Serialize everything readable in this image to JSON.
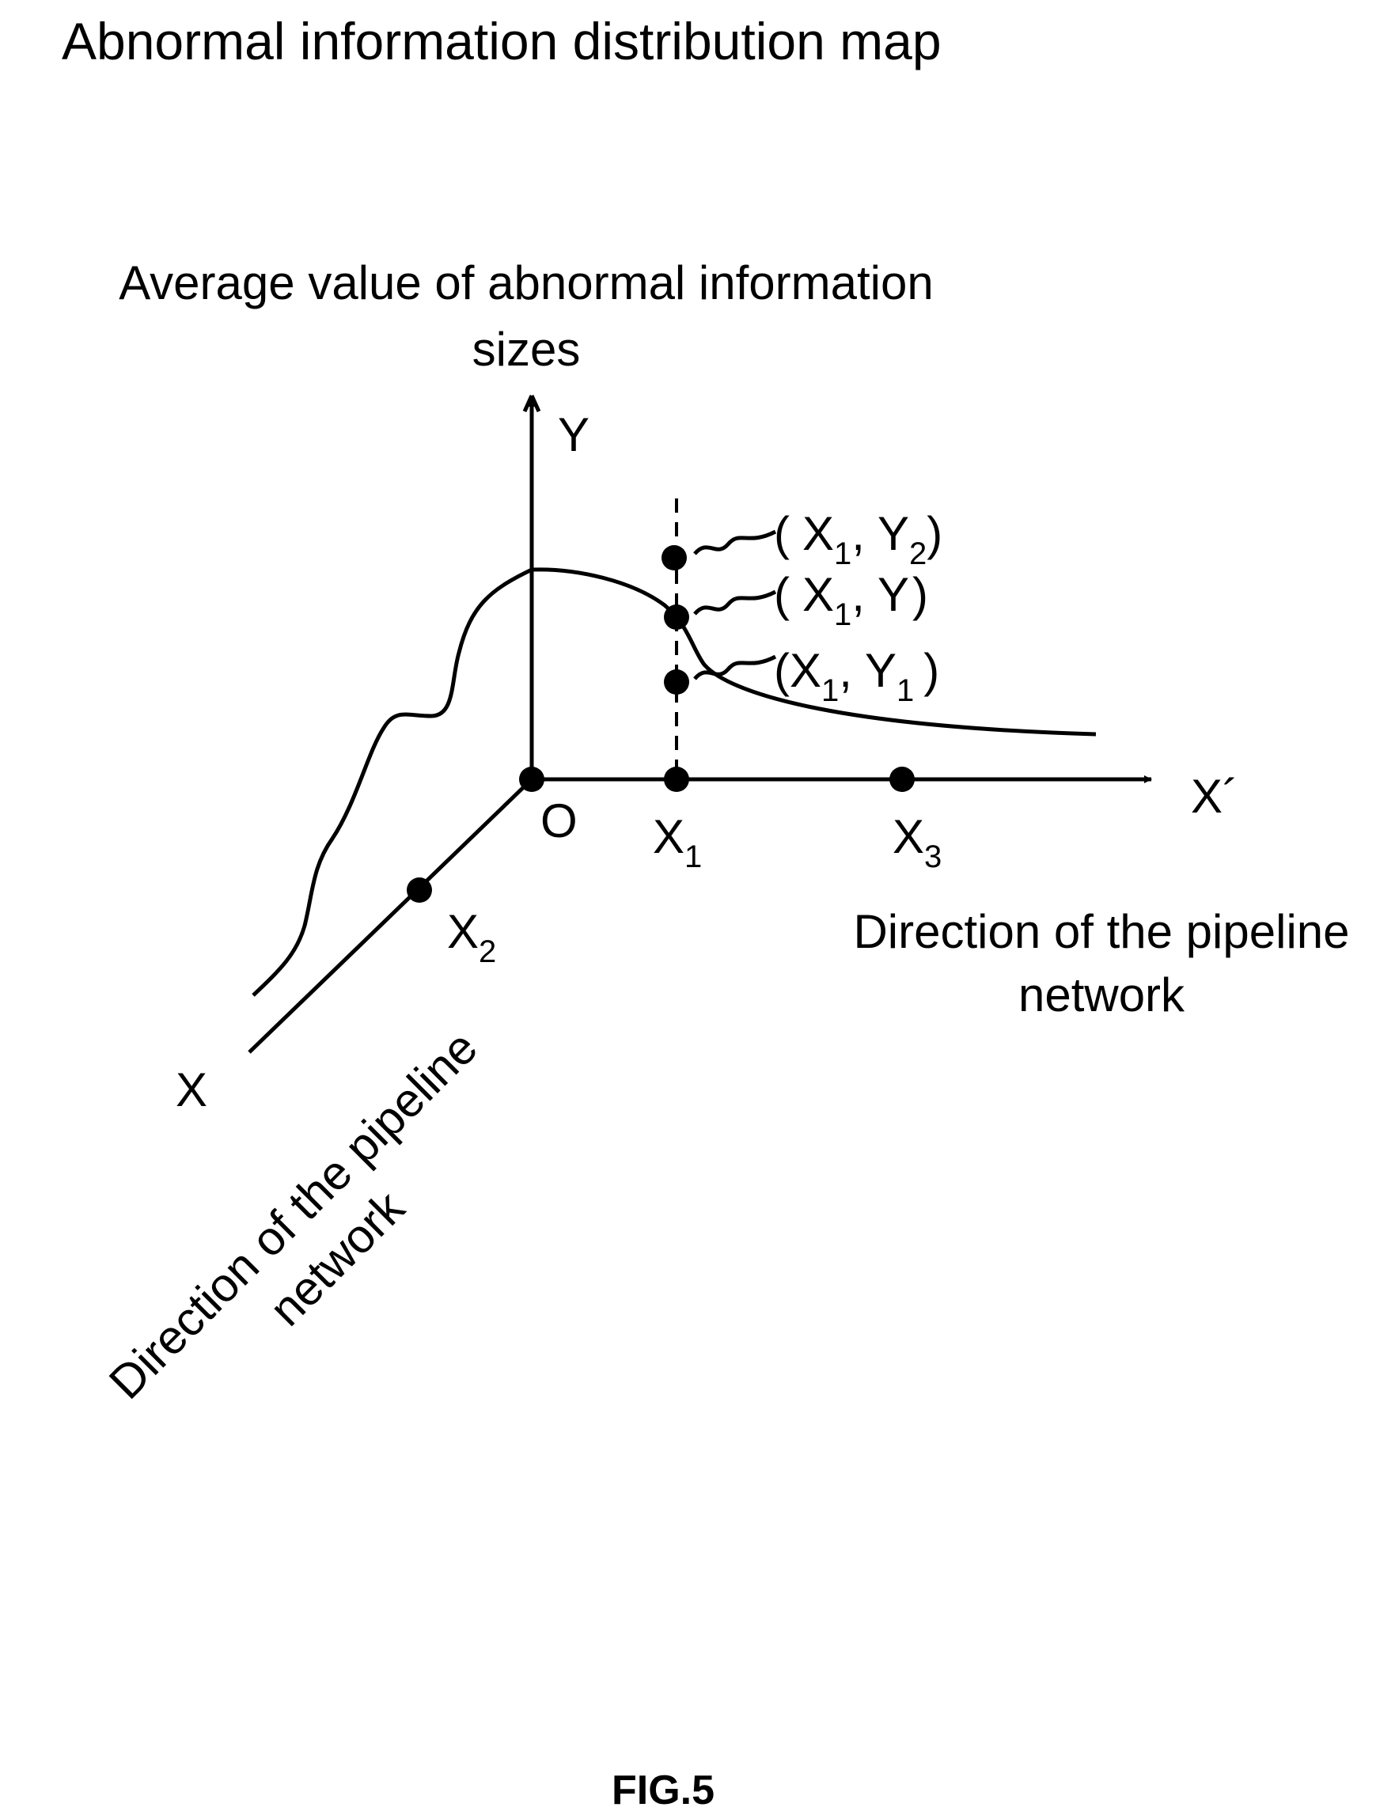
{
  "title": "Abnormal information distribution map",
  "y_axis": {
    "label_line1": "Average value of abnormal information",
    "label_line2": "sizes",
    "symbol": "Y"
  },
  "x_prime_axis": {
    "symbol": "X´",
    "label_line1": "Direction of the pipeline",
    "label_line2": "network"
  },
  "x_axis": {
    "symbol": "X",
    "label_line1": "Direction of the pipeline",
    "label_line2": "network"
  },
  "origin": "O",
  "points": {
    "x1": {
      "base": "X",
      "sub": "1"
    },
    "x2": {
      "base": "X",
      "sub": "2"
    },
    "x3": {
      "base": "X",
      "sub": "3"
    }
  },
  "callouts": {
    "top": {
      "open": "(",
      "x": "X",
      "xsub": "1",
      "sep": ",",
      "y": "Y",
      "ysub": "2",
      "close": ")"
    },
    "middle": {
      "open": "(",
      "x": "X",
      "xsub": "1",
      "sep": ",",
      "y": "Y",
      "close": ")"
    },
    "bottom": {
      "open": "(",
      "x": "X",
      "xsub": "1",
      "sep": ",",
      "y": "Y",
      "ysub": "1",
      "close": ")"
    }
  },
  "figure_label": "FIG.5"
}
